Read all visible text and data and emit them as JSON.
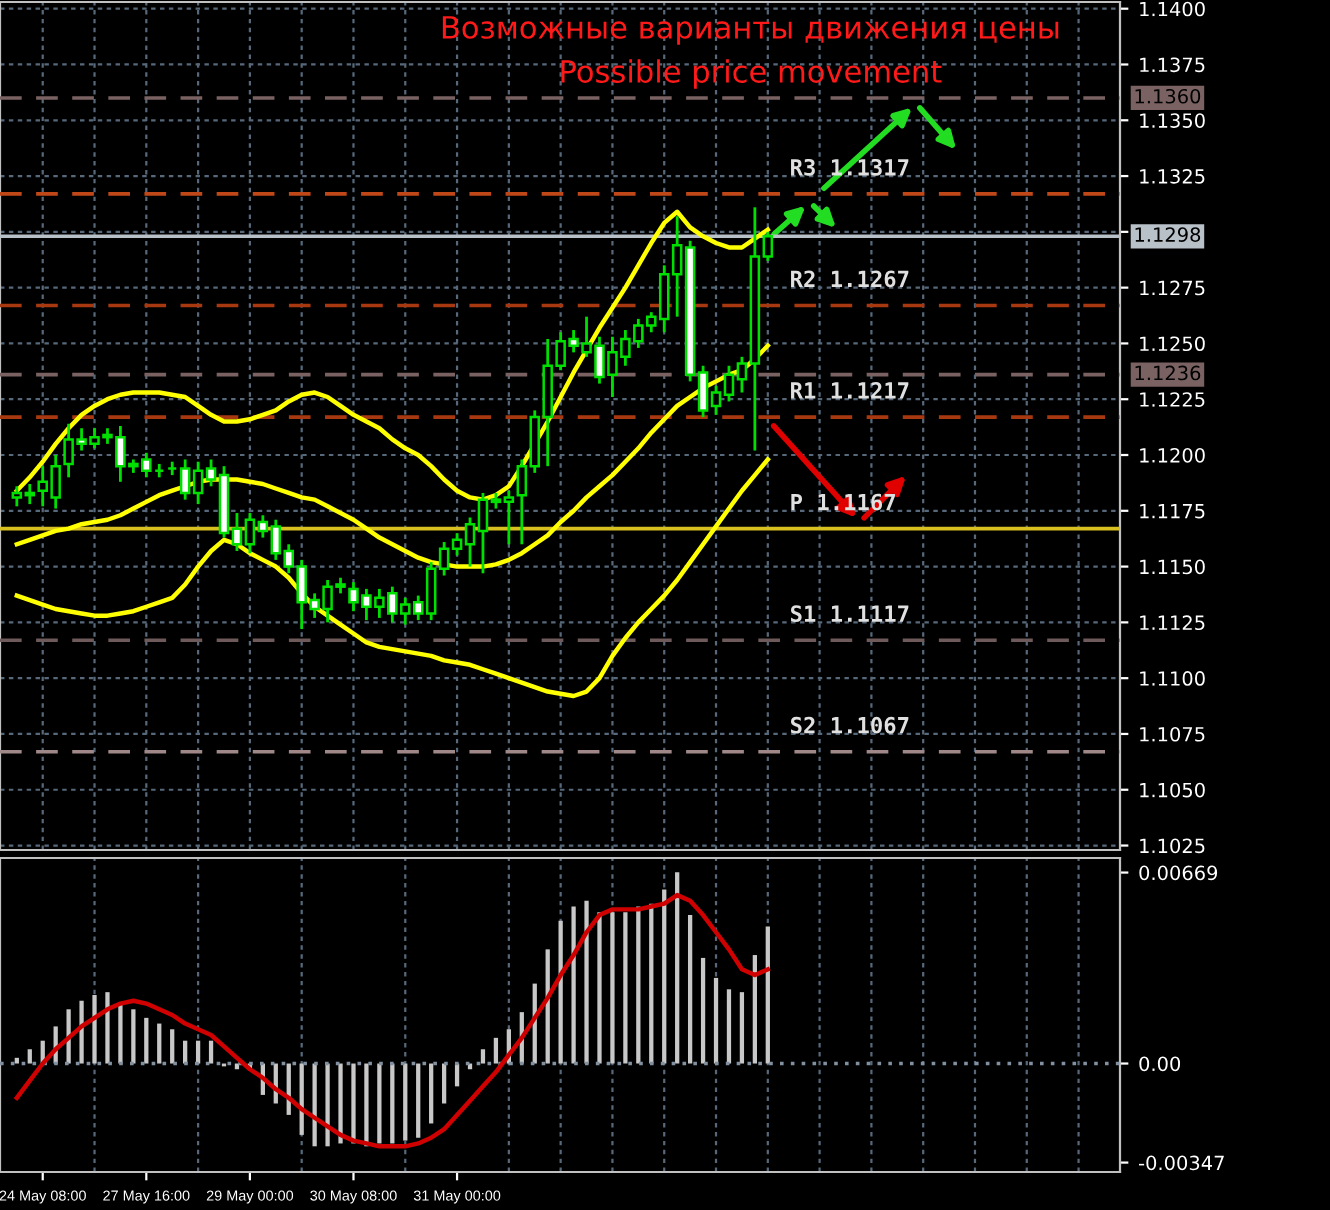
{
  "chart_data": [
    {
      "type": "candlestick",
      "title": "Возможные варианты движения цены",
      "subtitle": "Possible price movement",
      "categories": [
        null,
        null,
        null,
        null,
        null,
        null,
        null,
        null,
        null,
        null,
        null,
        null,
        null,
        null,
        null,
        null,
        null,
        null,
        null,
        null,
        null,
        null,
        null,
        null,
        null,
        null,
        null,
        null,
        null,
        null,
        null,
        null,
        null,
        null,
        null,
        null,
        null,
        null,
        null,
        null,
        null,
        null,
        null,
        null,
        null,
        null,
        null,
        null,
        null,
        null,
        null,
        null,
        null,
        null,
        null,
        null,
        null,
        null,
        null
      ],
      "ohlc": [
        [
          1.1181,
          1.1186,
          1.1177,
          1.1183
        ],
        [
          1.1183,
          1.1187,
          1.1178,
          1.1182
        ],
        [
          1.1184,
          1.1195,
          1.1177,
          1.1188
        ],
        [
          1.1181,
          1.12,
          1.1176,
          1.1195
        ],
        [
          1.1196,
          1.1214,
          1.119,
          1.1207
        ],
        [
          1.1207,
          1.1212,
          1.1202,
          1.1205
        ],
        [
          1.1205,
          1.1212,
          1.1203,
          1.1208
        ],
        [
          1.1208,
          1.1212,
          1.1205,
          1.1209
        ],
        [
          1.1208,
          1.1213,
          1.1188,
          1.1195
        ],
        [
          1.1195,
          1.1198,
          1.1192,
          1.1196
        ],
        [
          1.1198,
          1.1201,
          1.119,
          1.1193
        ],
        [
          1.1193,
          1.1196,
          1.119,
          1.1193
        ],
        [
          1.1194,
          1.1197,
          1.1191,
          1.1194
        ],
        [
          1.1194,
          1.1198,
          1.118,
          1.1183
        ],
        [
          1.1183,
          1.1197,
          1.1178,
          1.1193
        ],
        [
          1.1194,
          1.1198,
          1.1186,
          1.1189
        ],
        [
          1.1191,
          1.1195,
          1.1163,
          1.1165
        ],
        [
          1.1167,
          1.1174,
          1.1157,
          1.116
        ],
        [
          1.116,
          1.1174,
          1.1156,
          1.1171
        ],
        [
          1.117,
          1.1173,
          1.1163,
          1.1166
        ],
        [
          1.1168,
          1.1171,
          1.1153,
          1.1156
        ],
        [
          1.1157,
          1.116,
          1.1147,
          1.115
        ],
        [
          1.115,
          1.1153,
          1.1122,
          1.1134
        ],
        [
          1.1135,
          1.1138,
          1.1127,
          1.1131
        ],
        [
          1.1131,
          1.1144,
          1.1125,
          1.1141
        ],
        [
          1.1141,
          1.1145,
          1.1138,
          1.1142
        ],
        [
          1.114,
          1.1143,
          1.113,
          1.1134
        ],
        [
          1.1137,
          1.114,
          1.1126,
          1.1132
        ],
        [
          1.1132,
          1.114,
          1.1127,
          1.1136
        ],
        [
          1.1138,
          1.1141,
          1.1125,
          1.1129
        ],
        [
          1.1129,
          1.1136,
          1.1124,
          1.1133
        ],
        [
          1.1134,
          1.1137,
          1.1126,
          1.1129
        ],
        [
          1.1129,
          1.1152,
          1.1126,
          1.1149
        ],
        [
          1.1149,
          1.1161,
          1.1146,
          1.1158
        ],
        [
          1.1158,
          1.1165,
          1.1155,
          1.1162
        ],
        [
          1.116,
          1.1172,
          1.115,
          1.1169
        ],
        [
          1.1166,
          1.1183,
          1.1147,
          1.118
        ],
        [
          1.118,
          1.1183,
          1.1176,
          1.1179
        ],
        [
          1.1179,
          1.1184,
          1.116,
          1.1181
        ],
        [
          1.1182,
          1.1198,
          1.116,
          1.1195
        ],
        [
          1.1195,
          1.122,
          1.1192,
          1.1217
        ],
        [
          1.1217,
          1.1252,
          1.1195,
          1.124
        ],
        [
          1.124,
          1.1255,
          1.1238,
          1.1251
        ],
        [
          1.1252,
          1.1256,
          1.1246,
          1.1249
        ],
        [
          1.1246,
          1.1262,
          1.1244,
          1.125
        ],
        [
          1.1249,
          1.1253,
          1.1232,
          1.1235
        ],
        [
          1.1236,
          1.1253,
          1.1226,
          1.1246
        ],
        [
          1.1244,
          1.1256,
          1.124,
          1.1252
        ],
        [
          1.1251,
          1.1261,
          1.1248,
          1.1258
        ],
        [
          1.1258,
          1.1264,
          1.1255,
          1.1262
        ],
        [
          1.1261,
          1.1285,
          1.1255,
          1.1281
        ],
        [
          1.1281,
          1.1307,
          1.1262,
          1.1294
        ],
        [
          1.1293,
          1.1296,
          1.1233,
          1.1236
        ],
        [
          1.1237,
          1.124,
          1.1217,
          1.122
        ],
        [
          1.1222,
          1.1231,
          1.1218,
          1.1228
        ],
        [
          1.1227,
          1.124,
          1.1224,
          1.1236
        ],
        [
          1.1234,
          1.1244,
          1.1228,
          1.1241
        ],
        [
          1.1241,
          1.1311,
          1.1202,
          1.1289
        ],
        [
          1.1289,
          1.13,
          1.1287,
          1.1298
        ]
      ],
      "series": [
        {
          "type": "line",
          "color": "#ffff00",
          "values": [
            1.1184,
            1.119,
            1.1197,
            1.1205,
            1.1212,
            1.1218,
            1.1222,
            1.1225,
            1.1227,
            1.1228,
            1.1228,
            1.1228,
            1.1227,
            1.1226,
            1.1222,
            1.1218,
            1.1215,
            1.1215,
            1.1216,
            1.1218,
            1.122,
            1.1224,
            1.1227,
            1.1228,
            1.1226,
            1.1222,
            1.1218,
            1.1215,
            1.1212,
            1.1207,
            1.1203,
            1.12,
            1.1195,
            1.1189,
            1.1184,
            1.1181,
            1.118,
            1.1182,
            1.1186,
            1.1195,
            1.1205,
            1.1215,
            1.1226,
            1.1237,
            1.1247,
            1.1257,
            1.1266,
            1.1275,
            1.1285,
            1.1295,
            1.1304,
            1.1309,
            1.1302,
            1.1298,
            1.1295,
            1.1293,
            1.1293,
            1.1297,
            1.1301
          ]
        },
        {
          "type": "line",
          "color": "#ffff00",
          "values": [
            1.116,
            1.1162,
            1.1164,
            1.1166,
            1.1167,
            1.1169,
            1.117,
            1.1171,
            1.1173,
            1.1176,
            1.1179,
            1.1182,
            1.1184,
            1.1186,
            1.1188,
            1.1189,
            1.1189,
            1.1189,
            1.1188,
            1.1187,
            1.1185,
            1.1183,
            1.1181,
            1.118,
            1.1177,
            1.1174,
            1.1171,
            1.1167,
            1.1163,
            1.116,
            1.1157,
            1.1154,
            1.1152,
            1.1151,
            1.115,
            1.115,
            1.115,
            1.1151,
            1.1153,
            1.1156,
            1.116,
            1.1164,
            1.117,
            1.1175,
            1.1181,
            1.1186,
            1.1191,
            1.1197,
            1.1203,
            1.121,
            1.1216,
            1.1222,
            1.1226,
            1.123,
            1.1233,
            1.1236,
            1.1238,
            1.1243,
            1.1249
          ]
        },
        {
          "type": "line",
          "color": "#ffff00",
          "values": [
            1.1137,
            1.1135,
            1.1133,
            1.1131,
            1.113,
            1.1129,
            1.1128,
            1.1128,
            1.1129,
            1.113,
            1.1132,
            1.1134,
            1.1136,
            1.1142,
            1.115,
            1.1157,
            1.1162,
            1.116,
            1.1156,
            1.1153,
            1.115,
            1.1145,
            1.1138,
            1.1132,
            1.1128,
            1.1124,
            1.112,
            1.1116,
            1.1114,
            1.1113,
            1.1112,
            1.1111,
            1.111,
            1.1108,
            1.1107,
            1.1106,
            1.1104,
            1.1102,
            1.11,
            1.1098,
            1.1096,
            1.1094,
            1.1093,
            1.1092,
            1.1094,
            1.11,
            1.111,
            1.1118,
            1.1125,
            1.1131,
            1.1137,
            1.1144,
            1.1152,
            1.116,
            1.1168,
            1.1176,
            1.1184,
            1.1191,
            1.1198
          ]
        }
      ],
      "ref_lines": [
        {
          "axis": "y",
          "value": 1.136,
          "label": "1.1360",
          "color": "#7a6262",
          "line_style": "dashed"
        },
        {
          "axis": "y",
          "value": 1.1317,
          "color": "#c04818",
          "line_style": "dashed"
        },
        {
          "axis": "y",
          "value": 1.1298,
          "label": "1.1298",
          "color": "#b8c0c8",
          "line_style": "solid"
        },
        {
          "axis": "y",
          "value": 1.1267,
          "color": "#a83810",
          "line_style": "dashed"
        },
        {
          "axis": "y",
          "value": 1.1236,
          "label": "1.1236",
          "color": "#7a6262",
          "line_style": "dashed"
        },
        {
          "axis": "y",
          "value": 1.1217,
          "color": "#a83810",
          "line_style": "dashed"
        },
        {
          "axis": "y",
          "value": 1.1167,
          "color": "#d8c020",
          "line_style": "solid"
        },
        {
          "axis": "y",
          "value": 1.1117,
          "color": "#6e5a5a",
          "line_style": "dashed"
        },
        {
          "axis": "y",
          "value": 1.1067,
          "color": "#a08888",
          "line_style": "dashed"
        }
      ],
      "annotations": [
        {
          "text": "R3 1.1317",
          "y": 1.1317
        },
        {
          "text": "R2 1.1267",
          "y": 1.1267
        },
        {
          "text": "R1 1.1217",
          "y": 1.1217
        },
        {
          "text": "P 1.1167",
          "y": 1.1167
        },
        {
          "text": "S1 1.1117",
          "y": 1.1117
        },
        {
          "text": "S2 1.1067",
          "y": 1.1067
        }
      ],
      "ylim": [
        1.1023,
        1.1403
      ],
      "yticks": [
        {
          "value": 1.14,
          "label": "1.1400"
        },
        {
          "value": 1.1375,
          "label": "1.1375"
        },
        {
          "value": 1.135,
          "label": "1.1350"
        },
        {
          "value": 1.1325,
          "label": "1.1325"
        },
        {
          "value": 1.13,
          "label": null
        },
        {
          "value": 1.1275,
          "label": "1.1275"
        },
        {
          "value": 1.125,
          "label": "1.1250"
        },
        {
          "value": 1.1225,
          "label": "1.1225"
        },
        {
          "value": 1.12,
          "label": "1.1200"
        },
        {
          "value": 1.1175,
          "label": "1.1175"
        },
        {
          "value": 1.115,
          "label": "1.1150"
        },
        {
          "value": 1.1125,
          "label": "1.1125"
        },
        {
          "value": 1.11,
          "label": "1.1100"
        },
        {
          "value": 1.1075,
          "label": "1.1075"
        },
        {
          "value": 1.105,
          "label": "1.1050"
        },
        {
          "value": 1.1025,
          "label": "1.1025"
        }
      ],
      "grid": true,
      "tick_labels": "y"
    },
    {
      "type": "bar",
      "categories": [
        null,
        null,
        "24 May 08:00",
        null,
        null,
        null,
        null,
        null,
        null,
        null,
        "27 May 16:00",
        null,
        null,
        null,
        null,
        null,
        null,
        null,
        "29 May 00:00",
        null,
        null,
        null,
        null,
        null,
        null,
        null,
        "30 May 08:00",
        null,
        null,
        null,
        null,
        null,
        null,
        null,
        "31 May 00:00",
        null,
        null,
        null,
        null,
        null,
        null,
        null,
        null,
        null,
        null,
        null,
        null,
        null,
        null,
        null,
        null,
        null,
        null,
        null,
        null,
        null,
        null,
        null,
        null
      ],
      "series": [
        {
          "type": "bar",
          "color": "#c8c8c8",
          "values": [
            0.0002,
            0.0005,
            0.0008,
            0.0013,
            0.0019,
            0.0022,
            0.0024,
            0.0025,
            0.0021,
            0.0019,
            0.0016,
            0.0014,
            0.0012,
            0.0008,
            0.0008,
            0.0008,
            -0.0001,
            -0.0002,
            -0.0002,
            -0.0011,
            -0.0014,
            -0.0018,
            -0.0025,
            -0.0029,
            -0.0029,
            -0.0028,
            -0.0028,
            -0.0029,
            -0.0028,
            -0.0028,
            -0.0027,
            -0.0026,
            -0.0021,
            -0.0014,
            -0.0008,
            -0.0002,
            0.0005,
            0.0009,
            0.0012,
            0.0018,
            0.0028,
            0.004,
            0.005,
            0.0055,
            0.0057,
            0.0053,
            0.0053,
            0.0053,
            0.0055,
            0.0056,
            0.0061,
            0.0067,
            0.0052,
            0.0037,
            0.003,
            0.0026,
            0.0025,
            0.0038,
            0.0048
          ]
        },
        {
          "type": "line",
          "color": "#d00000",
          "values": [
            -0.0012,
            -0.0006,
            0.0,
            0.0005,
            0.0009,
            0.0013,
            0.0016,
            0.0019,
            0.0021,
            0.0022,
            0.0021,
            0.0019,
            0.0017,
            0.0014,
            0.0012,
            0.001,
            0.0006,
            0.0002,
            -0.0002,
            -0.0005,
            -0.0009,
            -0.0012,
            -0.0016,
            -0.0019,
            -0.0022,
            -0.0025,
            -0.0027,
            -0.0028,
            -0.0029,
            -0.0029,
            -0.0029,
            -0.0028,
            -0.0026,
            -0.0023,
            -0.0018,
            -0.0013,
            -0.0008,
            -0.0003,
            0.0003,
            0.0009,
            0.0016,
            0.0023,
            0.0031,
            0.0038,
            0.0046,
            0.0052,
            0.0054,
            0.0054,
            0.0054,
            0.0055,
            0.0056,
            0.0059,
            0.0057,
            0.0052,
            0.0046,
            0.004,
            0.0033,
            0.0031,
            0.0033
          ]
        }
      ],
      "ref_lines": [
        {
          "axis": "y",
          "value": 0,
          "color": "#8090a0",
          "line_style": "dotted"
        }
      ],
      "ylim": [
        -0.0038,
        0.0072
      ],
      "yticks": [
        {
          "value": 0.00669,
          "label": "0.00669"
        },
        {
          "value": 0,
          "label": "0.00"
        },
        {
          "value": -0.00347,
          "label": "-0.00347"
        }
      ],
      "grid": "x"
    }
  ]
}
